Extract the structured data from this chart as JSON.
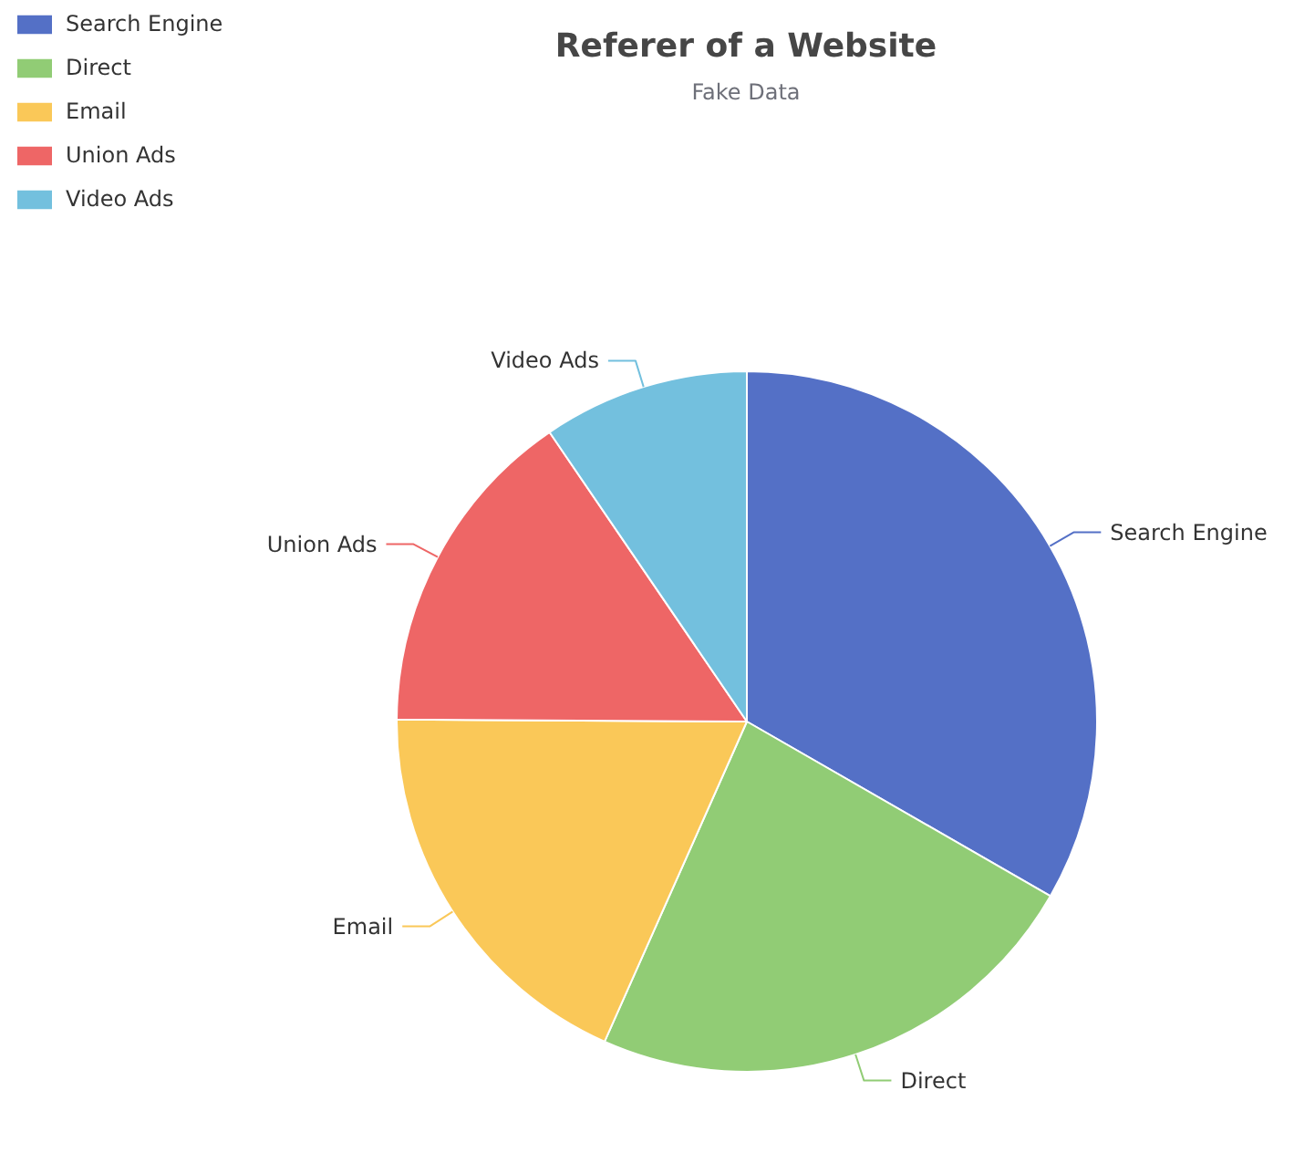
{
  "chart_data": {
    "type": "pie",
    "title": "Referer of a Website",
    "subtitle": "Fake Data",
    "categories": [
      "Search Engine",
      "Direct",
      "Email",
      "Union Ads",
      "Video Ads"
    ],
    "values": [
      33.3,
      23.36,
      18.43,
      15.38,
      9.53
    ],
    "colors": [
      "#5470c6",
      "#91cc75",
      "#fac858",
      "#ee6666",
      "#73c0de"
    ],
    "legend": "top left"
  }
}
